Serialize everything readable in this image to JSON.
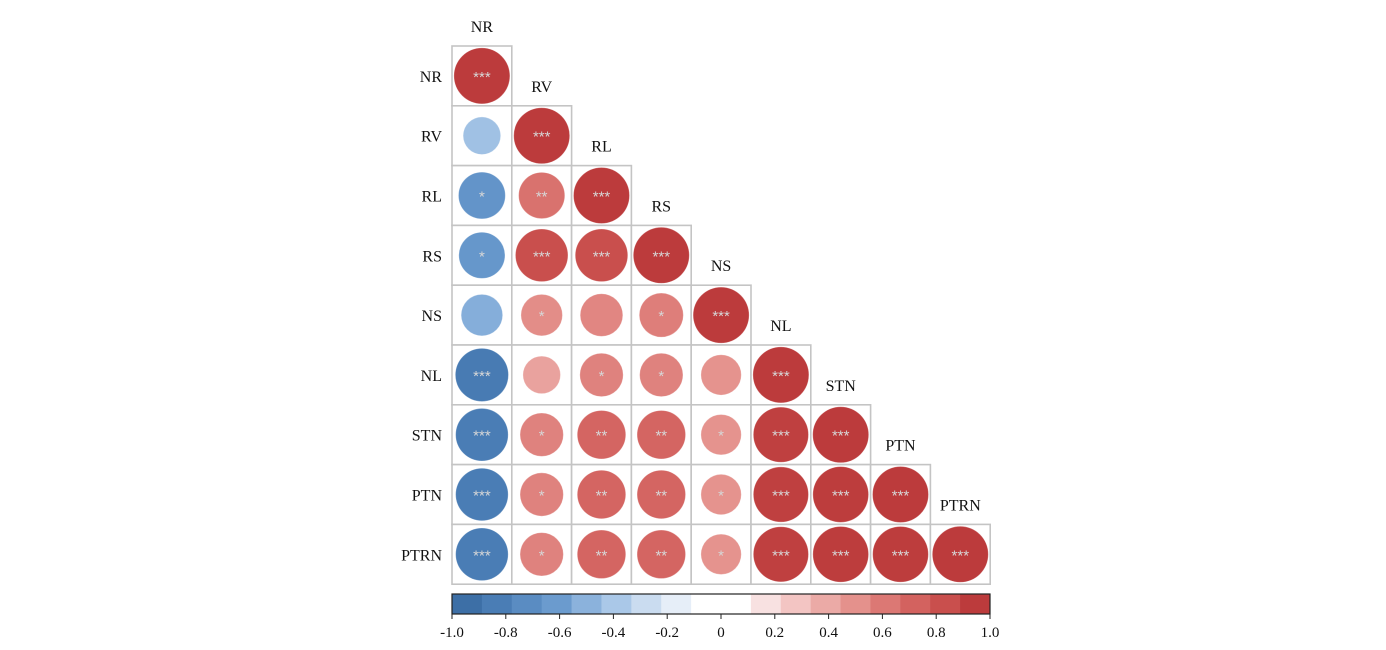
{
  "chart_data": {
    "type": "heatmap",
    "style": "lower-triangle correlation matrix drawn as circles",
    "variables": [
      "NR",
      "RV",
      "RL",
      "RS",
      "NS",
      "NL",
      "STN",
      "PTN",
      "PTRN"
    ],
    "cells": [
      {
        "row": "NR",
        "col": "NR",
        "value": 1.0,
        "sig": "***"
      },
      {
        "row": "RV",
        "col": "NR",
        "value": -0.45,
        "sig": ""
      },
      {
        "row": "RV",
        "col": "RV",
        "value": 1.0,
        "sig": "***"
      },
      {
        "row": "RL",
        "col": "NR",
        "value": -0.7,
        "sig": "*"
      },
      {
        "row": "RL",
        "col": "RV",
        "value": 0.68,
        "sig": "**"
      },
      {
        "row": "RL",
        "col": "RL",
        "value": 1.0,
        "sig": "***"
      },
      {
        "row": "RS",
        "col": "NR",
        "value": -0.68,
        "sig": "*"
      },
      {
        "row": "RS",
        "col": "RV",
        "value": 0.88,
        "sig": "***"
      },
      {
        "row": "RS",
        "col": "RL",
        "value": 0.88,
        "sig": "***"
      },
      {
        "row": "RS",
        "col": "RS",
        "value": 1.0,
        "sig": "***"
      },
      {
        "row": "NS",
        "col": "NR",
        "value": -0.55,
        "sig": ""
      },
      {
        "row": "NS",
        "col": "RV",
        "value": 0.55,
        "sig": "*"
      },
      {
        "row": "NS",
        "col": "RL",
        "value": 0.58,
        "sig": ""
      },
      {
        "row": "NS",
        "col": "RS",
        "value": 0.62,
        "sig": "*"
      },
      {
        "row": "NS",
        "col": "NS",
        "value": 1.0,
        "sig": "***"
      },
      {
        "row": "NL",
        "col": "NR",
        "value": -0.9,
        "sig": "***"
      },
      {
        "row": "NL",
        "col": "RV",
        "value": 0.45,
        "sig": ""
      },
      {
        "row": "NL",
        "col": "RL",
        "value": 0.6,
        "sig": "*"
      },
      {
        "row": "NL",
        "col": "RS",
        "value": 0.6,
        "sig": "*"
      },
      {
        "row": "NL",
        "col": "NS",
        "value": 0.52,
        "sig": ""
      },
      {
        "row": "NL",
        "col": "NL",
        "value": 1.0,
        "sig": "***"
      },
      {
        "row": "STN",
        "col": "NR",
        "value": -0.88,
        "sig": "***"
      },
      {
        "row": "STN",
        "col": "RV",
        "value": 0.6,
        "sig": "*"
      },
      {
        "row": "STN",
        "col": "RL",
        "value": 0.75,
        "sig": "**"
      },
      {
        "row": "STN",
        "col": "RS",
        "value": 0.75,
        "sig": "**"
      },
      {
        "row": "STN",
        "col": "NS",
        "value": 0.52,
        "sig": "*"
      },
      {
        "row": "STN",
        "col": "NL",
        "value": 0.97,
        "sig": "***"
      },
      {
        "row": "STN",
        "col": "STN",
        "value": 1.0,
        "sig": "***"
      },
      {
        "row": "PTN",
        "col": "NR",
        "value": -0.88,
        "sig": "***"
      },
      {
        "row": "PTN",
        "col": "RV",
        "value": 0.6,
        "sig": "*"
      },
      {
        "row": "PTN",
        "col": "RL",
        "value": 0.75,
        "sig": "**"
      },
      {
        "row": "PTN",
        "col": "RS",
        "value": 0.75,
        "sig": "**"
      },
      {
        "row": "PTN",
        "col": "NS",
        "value": 0.52,
        "sig": "*"
      },
      {
        "row": "PTN",
        "col": "NL",
        "value": 0.97,
        "sig": "***"
      },
      {
        "row": "PTN",
        "col": "STN",
        "value": 0.99,
        "sig": "***"
      },
      {
        "row": "PTN",
        "col": "PTN",
        "value": 1.0,
        "sig": "***"
      },
      {
        "row": "PTRN",
        "col": "NR",
        "value": -0.88,
        "sig": "***"
      },
      {
        "row": "PTRN",
        "col": "RV",
        "value": 0.6,
        "sig": "*"
      },
      {
        "row": "PTRN",
        "col": "RL",
        "value": 0.75,
        "sig": "**"
      },
      {
        "row": "PTRN",
        "col": "RS",
        "value": 0.75,
        "sig": "**"
      },
      {
        "row": "PTRN",
        "col": "NS",
        "value": 0.52,
        "sig": "*"
      },
      {
        "row": "PTRN",
        "col": "NL",
        "value": 0.97,
        "sig": "***"
      },
      {
        "row": "PTRN",
        "col": "STN",
        "value": 0.99,
        "sig": "***"
      },
      {
        "row": "PTRN",
        "col": "PTN",
        "value": 0.99,
        "sig": "***"
      },
      {
        "row": "PTRN",
        "col": "PTRN",
        "value": 1.0,
        "sig": "***"
      }
    ],
    "colorbar": {
      "range": [
        -1.0,
        1.0
      ],
      "tick_labels": [
        "-1.0",
        "-0.8",
        "-0.6",
        "-0.4",
        "-0.2",
        "0",
        "0.2",
        "0.4",
        "0.6",
        "0.8",
        "1.0"
      ],
      "colors": [
        "#3d6fa6",
        "#4a7db5",
        "#5a8cc2",
        "#6b9bce",
        "#8bb2dc",
        "#aac8e8",
        "#cadcf0",
        "#e6eef8",
        "#ffffff",
        "#ffffff",
        "#f8e1e1",
        "#f3c5c3",
        "#ebaaa6",
        "#e4918c",
        "#dc7874",
        "#d3625f",
        "#c94f4d",
        "#bc3b3c"
      ],
      "placement": "bottom"
    },
    "circle_size_encodes": "absolute correlation"
  }
}
